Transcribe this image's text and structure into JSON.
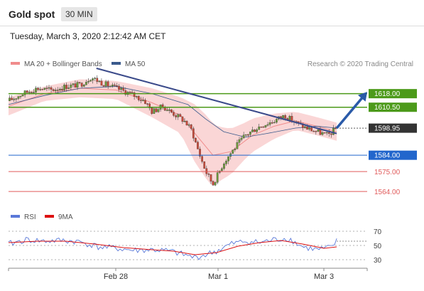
{
  "header": {
    "title": "Gold spot",
    "timeframe": "30 MIN"
  },
  "timestamp": "Tuesday, March 3, 2020 2:12:42 AM CET",
  "legend": {
    "ma20": "MA 20 + Bollinger Bands",
    "ma50": "MA 50",
    "rsi": "RSI",
    "ma9": "9MA"
  },
  "copyright": "Research © 2020 Trading Central",
  "colors": {
    "ma20": "#f08c8c",
    "ma50": "#3a5a8c",
    "resistance": "#4c9a1a",
    "support": "#2266cc",
    "support_minor": "#e05a5a",
    "band": "#f8c8c8",
    "up": "#6a9a3a",
    "down": "#c84a3a"
  },
  "chart_data": [
    {
      "type": "candlestick",
      "ylim": [
        1555,
        1632
      ],
      "x_ticks": [
        "Feb 28",
        "Mar 1",
        "Mar 3"
      ],
      "last_price": {
        "label": "1598.95",
        "value": 1598.95
      },
      "levels": [
        {
          "label": "1618.00",
          "value": 1618.0,
          "kind": "resistance"
        },
        {
          "label": "1610.50",
          "value": 1610.5,
          "kind": "resistance"
        },
        {
          "label": "1584.00",
          "value": 1584.0,
          "kind": "support"
        },
        {
          "label": "1575.00",
          "value": 1575.0,
          "kind": "support_minor"
        },
        {
          "label": "1564.00",
          "value": 1564.0,
          "kind": "support_minor"
        }
      ],
      "trendline": {
        "from": [
          0.245,
          1632
        ],
        "to": [
          0.915,
          1596
        ]
      },
      "forecast_arrow": {
        "from": [
          0.915,
          1598.95
        ],
        "to": [
          1.0,
          1619
        ]
      },
      "close_path": [
        [
          0.0,
          1614
        ],
        [
          0.04,
          1618
        ],
        [
          0.08,
          1621
        ],
        [
          0.12,
          1620
        ],
        [
          0.16,
          1622
        ],
        [
          0.2,
          1623
        ],
        [
          0.23,
          1627
        ],
        [
          0.26,
          1624
        ],
        [
          0.3,
          1621
        ],
        [
          0.34,
          1618
        ],
        [
          0.38,
          1614
        ],
        [
          0.4,
          1608
        ],
        [
          0.43,
          1611
        ],
        [
          0.46,
          1607
        ],
        [
          0.49,
          1603
        ],
        [
          0.51,
          1598
        ],
        [
          0.53,
          1586
        ],
        [
          0.55,
          1575
        ],
        [
          0.57,
          1568
        ],
        [
          0.6,
          1580
        ],
        [
          0.63,
          1588
        ],
        [
          0.66,
          1595
        ],
        [
          0.7,
          1600
        ],
        [
          0.74,
          1603
        ],
        [
          0.77,
          1606
        ],
        [
          0.8,
          1602
        ],
        [
          0.83,
          1599
        ],
        [
          0.86,
          1597
        ],
        [
          0.89,
          1595
        ],
        [
          0.915,
          1598.95
        ]
      ],
      "ma20_path": [
        [
          0.0,
          1611
        ],
        [
          0.1,
          1618
        ],
        [
          0.2,
          1621
        ],
        [
          0.3,
          1620
        ],
        [
          0.4,
          1613
        ],
        [
          0.48,
          1606
        ],
        [
          0.52,
          1596
        ],
        [
          0.57,
          1584
        ],
        [
          0.62,
          1586
        ],
        [
          0.68,
          1595
        ],
        [
          0.74,
          1600
        ],
        [
          0.8,
          1603
        ],
        [
          0.86,
          1600
        ],
        [
          0.915,
          1597
        ]
      ],
      "ma50_path": [
        [
          0.0,
          1612
        ],
        [
          0.1,
          1617
        ],
        [
          0.2,
          1621
        ],
        [
          0.3,
          1622
        ],
        [
          0.4,
          1618
        ],
        [
          0.5,
          1612
        ],
        [
          0.55,
          1604
        ],
        [
          0.6,
          1597
        ],
        [
          0.66,
          1594
        ],
        [
          0.72,
          1596
        ],
        [
          0.8,
          1599
        ],
        [
          0.86,
          1600
        ],
        [
          0.915,
          1599
        ]
      ],
      "band_width_path": [
        [
          0.0,
          5
        ],
        [
          0.1,
          4
        ],
        [
          0.2,
          5
        ],
        [
          0.3,
          5
        ],
        [
          0.4,
          8
        ],
        [
          0.48,
          10
        ],
        [
          0.52,
          16
        ],
        [
          0.56,
          18
        ],
        [
          0.6,
          14
        ],
        [
          0.66,
          10
        ],
        [
          0.74,
          7
        ],
        [
          0.8,
          5
        ],
        [
          0.86,
          5
        ],
        [
          0.915,
          5
        ]
      ]
    },
    {
      "type": "line",
      "name": "RSI panel",
      "ylim": [
        20,
        80
      ],
      "y_ticks": [
        70,
        50,
        30
      ],
      "rsi_path": [
        [
          0.0,
          52
        ],
        [
          0.05,
          58
        ],
        [
          0.1,
          56
        ],
        [
          0.15,
          57
        ],
        [
          0.2,
          55
        ],
        [
          0.25,
          48
        ],
        [
          0.3,
          46
        ],
        [
          0.35,
          43
        ],
        [
          0.4,
          44
        ],
        [
          0.45,
          42
        ],
        [
          0.48,
          38
        ],
        [
          0.52,
          33
        ],
        [
          0.55,
          37
        ],
        [
          0.58,
          42
        ],
        [
          0.62,
          52
        ],
        [
          0.66,
          56
        ],
        [
          0.7,
          54
        ],
        [
          0.74,
          58
        ],
        [
          0.78,
          60
        ],
        [
          0.82,
          48
        ],
        [
          0.86,
          44
        ],
        [
          0.9,
          47
        ],
        [
          0.915,
          56
        ]
      ],
      "ma9_path": [
        [
          0.0,
          54
        ],
        [
          0.08,
          56
        ],
        [
          0.16,
          56
        ],
        [
          0.24,
          52
        ],
        [
          0.32,
          47
        ],
        [
          0.4,
          44
        ],
        [
          0.46,
          42
        ],
        [
          0.52,
          37
        ],
        [
          0.58,
          40
        ],
        [
          0.64,
          49
        ],
        [
          0.7,
          54
        ],
        [
          0.76,
          57
        ],
        [
          0.82,
          52
        ],
        [
          0.88,
          46
        ],
        [
          0.915,
          48
        ]
      ]
    }
  ]
}
